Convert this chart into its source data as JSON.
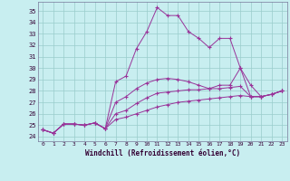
{
  "xlabel": "Windchill (Refroidissement éolien,°C)",
  "background_color": "#c8eef0",
  "grid_color": "#99cccc",
  "line_color": "#993399",
  "xlim": [
    -0.5,
    23.5
  ],
  "ylim": [
    23.6,
    35.8
  ],
  "xticks": [
    0,
    1,
    2,
    3,
    4,
    5,
    6,
    7,
    8,
    9,
    10,
    11,
    12,
    13,
    14,
    15,
    16,
    17,
    18,
    19,
    20,
    21,
    22,
    23
  ],
  "yticks": [
    24,
    25,
    26,
    27,
    28,
    29,
    30,
    31,
    32,
    33,
    34,
    35
  ],
  "curves": [
    [
      24.6,
      24.3,
      25.1,
      25.1,
      25.0,
      25.2,
      24.7,
      28.8,
      29.3,
      31.7,
      33.2,
      35.3,
      34.6,
      34.6,
      33.2,
      32.6,
      31.8,
      32.6,
      32.6,
      30.0,
      27.5,
      27.5,
      27.7,
      28.0
    ],
    [
      24.6,
      24.3,
      25.1,
      25.1,
      25.0,
      25.2,
      24.7,
      27.0,
      27.5,
      28.2,
      28.7,
      29.0,
      29.1,
      29.0,
      28.8,
      28.5,
      28.2,
      28.5,
      28.5,
      30.0,
      28.5,
      27.5,
      27.7,
      28.0
    ],
    [
      24.6,
      24.3,
      25.1,
      25.1,
      25.0,
      25.2,
      24.7,
      26.0,
      26.3,
      26.9,
      27.4,
      27.8,
      27.9,
      28.0,
      28.1,
      28.1,
      28.2,
      28.2,
      28.3,
      28.4,
      27.5,
      27.5,
      27.7,
      28.0
    ],
    [
      24.6,
      24.3,
      25.1,
      25.1,
      25.0,
      25.2,
      24.7,
      25.5,
      25.7,
      26.0,
      26.3,
      26.6,
      26.8,
      27.0,
      27.1,
      27.2,
      27.3,
      27.4,
      27.5,
      27.6,
      27.5,
      27.5,
      27.7,
      28.0
    ]
  ]
}
